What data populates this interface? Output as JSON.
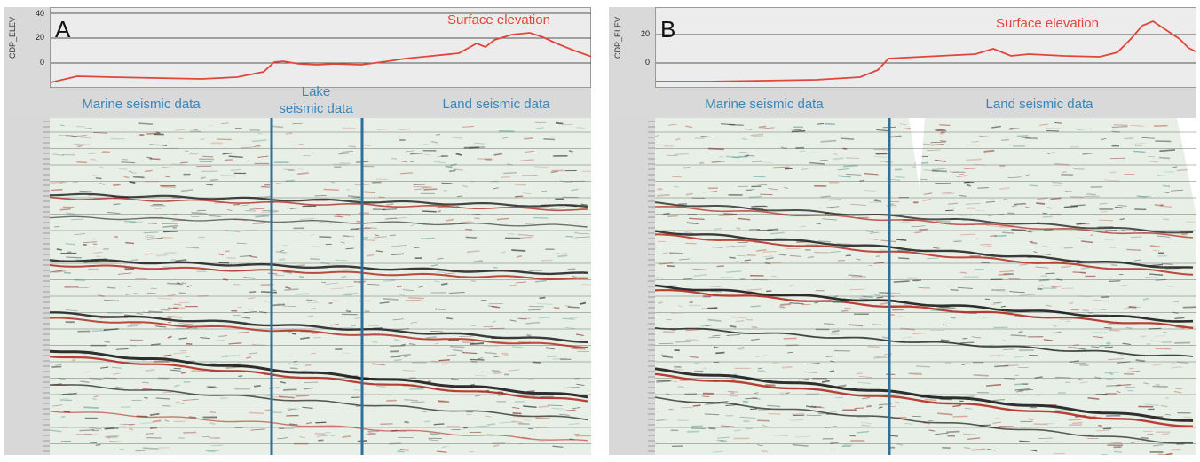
{
  "panel_a": {
    "letter": "A",
    "axis_label": "CDP_ELEV",
    "ticks": [
      "40",
      "20",
      "0"
    ],
    "surface_label": "Surface elevation",
    "regions": [
      "Marine seismic data",
      "Lake\nseismic data",
      "Land seismic data"
    ]
  },
  "panel_b": {
    "letter": "B",
    "axis_label": "CDP_ELEV",
    "ticks": [
      "20",
      "0"
    ],
    "surface_label": "Surface elevation",
    "regions": [
      "Marine seismic data",
      "Land seismic data"
    ]
  },
  "colors": {
    "elevation_line": "#e2453a",
    "boundary_line": "#2f6f9c",
    "label_blue": "#3a86b8",
    "seismic_bg": "#e7efe6",
    "reflector_red": "#b42b20",
    "reflector_black": "#1a1a1a"
  }
}
